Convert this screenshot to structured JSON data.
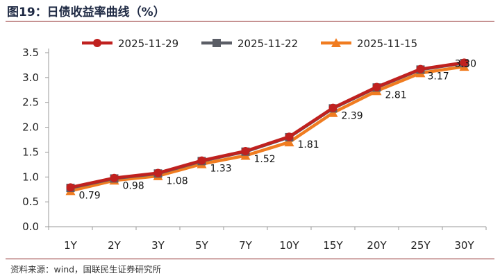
{
  "figure": {
    "title": "图19：日债收益率曲线（%）",
    "source": "资料来源：wind，国联民生证券研究所"
  },
  "chart_data": {
    "type": "line",
    "title": "日债收益率曲线（%）",
    "xlabel": "",
    "ylabel": "",
    "categories": [
      "1Y",
      "2Y",
      "3Y",
      "5Y",
      "7Y",
      "10Y",
      "15Y",
      "20Y",
      "25Y",
      "30Y"
    ],
    "ylim": [
      0,
      3.5
    ],
    "yticks": [
      "0.0",
      "0.5",
      "1.0",
      "1.5",
      "2.0",
      "2.5",
      "3.0",
      "3.5"
    ],
    "legend_position": "top",
    "series": [
      {
        "name": "2025-11-29",
        "color": "#c0211f",
        "marker": "circle",
        "values": [
          0.79,
          0.98,
          1.08,
          1.33,
          1.52,
          1.81,
          2.39,
          2.81,
          3.17,
          3.3
        ]
      },
      {
        "name": "2025-11-22",
        "color": "#5b5e66",
        "marker": "square",
        "values": [
          0.78,
          0.97,
          1.07,
          1.32,
          1.51,
          1.8,
          2.38,
          2.8,
          3.16,
          3.29
        ]
      },
      {
        "name": "2025-11-15",
        "color": "#f07c20",
        "marker": "triangle",
        "values": [
          0.72,
          0.93,
          1.02,
          1.26,
          1.43,
          1.7,
          2.29,
          2.73,
          3.09,
          3.22
        ]
      }
    ],
    "data_labels": [
      "0.79",
      "0.98",
      "1.08",
      "1.33",
      "1.52",
      "1.81",
      "2.39",
      "2.81",
      "3.17",
      "3.30"
    ]
  }
}
